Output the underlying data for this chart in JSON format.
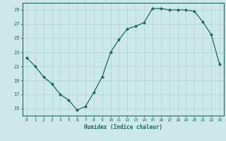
{
  "x": [
    0,
    1,
    2,
    3,
    4,
    5,
    6,
    7,
    8,
    9,
    10,
    11,
    12,
    13,
    14,
    15,
    16,
    17,
    18,
    19,
    20,
    21,
    22,
    23
  ],
  "y": [
    22.2,
    21.0,
    19.5,
    18.5,
    17.0,
    16.2,
    14.8,
    15.3,
    17.3,
    19.5,
    23.0,
    24.8,
    26.3,
    26.7,
    27.2,
    29.2,
    29.2,
    29.0,
    29.0,
    29.0,
    28.8,
    27.3,
    25.5,
    21.3
  ],
  "xlabel": "Humidex (Indice chaleur)",
  "ylabel": "",
  "xlim": [
    -0.5,
    23.5
  ],
  "ylim": [
    14,
    30
  ],
  "yticks": [
    15,
    17,
    19,
    21,
    23,
    25,
    27,
    29
  ],
  "xticks": [
    0,
    1,
    2,
    3,
    4,
    5,
    6,
    7,
    8,
    9,
    10,
    11,
    12,
    13,
    14,
    15,
    16,
    17,
    18,
    19,
    20,
    21,
    22,
    23
  ],
  "line_color": "#1a6b5a",
  "marker": "D",
  "marker_size": 2.0,
  "bg_color": "#cce8e8",
  "grid_color": "#aad4d4",
  "axis_color": "#1a6b5a",
  "tick_color": "#1a6b5a",
  "xlabel_color": "#1a6b5a"
}
